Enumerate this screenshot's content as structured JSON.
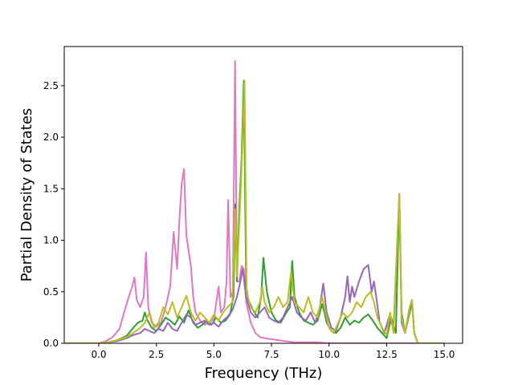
{
  "chart_data": {
    "type": "line",
    "title": "",
    "xlabel": "Frequency (THz)",
    "ylabel": "Partial Density of States",
    "xlim": [
      -1.5,
      15.8
    ],
    "ylim": [
      0,
      2.88
    ],
    "xticks": [
      0.0,
      2.5,
      5.0,
      7.5,
      10.0,
      12.5,
      15.0
    ],
    "xtick_labels": [
      "0.0",
      "2.5",
      "5.0",
      "7.5",
      "10.0",
      "12.5",
      "15.0"
    ],
    "yticks": [
      0.0,
      0.5,
      1.0,
      1.5,
      2.0,
      2.5
    ],
    "ytick_labels": [
      "0.0",
      "0.5",
      "1.0",
      "1.5",
      "2.0",
      "2.5"
    ],
    "grid": false,
    "legend": "none",
    "series": [
      {
        "color": "#e377c2",
        "points": [
          [
            -1.5,
            0
          ],
          [
            0,
            0
          ],
          [
            0.3,
            0.02
          ],
          [
            0.6,
            0.06
          ],
          [
            0.9,
            0.14
          ],
          [
            1.1,
            0.3
          ],
          [
            1.3,
            0.45
          ],
          [
            1.45,
            0.55
          ],
          [
            1.55,
            0.64
          ],
          [
            1.65,
            0.42
          ],
          [
            1.8,
            0.35
          ],
          [
            1.95,
            0.45
          ],
          [
            2.05,
            0.88
          ],
          [
            2.15,
            0.35
          ],
          [
            2.3,
            0.2
          ],
          [
            2.5,
            0.16
          ],
          [
            2.7,
            0.2
          ],
          [
            2.9,
            0.35
          ],
          [
            3.1,
            0.55
          ],
          [
            3.25,
            1.08
          ],
          [
            3.4,
            0.72
          ],
          [
            3.5,
            1.2
          ],
          [
            3.6,
            1.55
          ],
          [
            3.7,
            1.69
          ],
          [
            3.8,
            1.05
          ],
          [
            3.9,
            0.9
          ],
          [
            4.0,
            0.75
          ],
          [
            4.1,
            0.45
          ],
          [
            4.2,
            0.3
          ],
          [
            4.4,
            0.22
          ],
          [
            4.6,
            0.18
          ],
          [
            4.8,
            0.2
          ],
          [
            5.0,
            0.24
          ],
          [
            5.2,
            0.55
          ],
          [
            5.3,
            0.3
          ],
          [
            5.45,
            0.35
          ],
          [
            5.55,
            0.6
          ],
          [
            5.62,
            1.39
          ],
          [
            5.72,
            0.45
          ],
          [
            5.82,
            0.5
          ],
          [
            5.92,
            2.74
          ],
          [
            6.0,
            0.6
          ],
          [
            6.1,
            0.6
          ],
          [
            6.2,
            0.75
          ],
          [
            6.3,
            0.72
          ],
          [
            6.4,
            0.4
          ],
          [
            6.6,
            0.2
          ],
          [
            6.8,
            0.1
          ],
          [
            7.0,
            0.06
          ],
          [
            7.2,
            0.05
          ],
          [
            7.5,
            0.04
          ],
          [
            7.8,
            0.03
          ],
          [
            8.1,
            0.02
          ],
          [
            8.5,
            0.01
          ],
          [
            9.5,
            0.01
          ],
          [
            10.0,
            0
          ],
          [
            15.0,
            0
          ]
        ]
      },
      {
        "color": "#2ca02c",
        "points": [
          [
            -1.5,
            0
          ],
          [
            0,
            0
          ],
          [
            0.4,
            0.01
          ],
          [
            0.8,
            0.03
          ],
          [
            1.2,
            0.07
          ],
          [
            1.5,
            0.15
          ],
          [
            1.7,
            0.2
          ],
          [
            1.9,
            0.22
          ],
          [
            2.0,
            0.3
          ],
          [
            2.1,
            0.23
          ],
          [
            2.3,
            0.15
          ],
          [
            2.5,
            0.12
          ],
          [
            2.7,
            0.18
          ],
          [
            2.9,
            0.25
          ],
          [
            3.1,
            0.22
          ],
          [
            3.3,
            0.18
          ],
          [
            3.5,
            0.26
          ],
          [
            3.7,
            0.2
          ],
          [
            3.9,
            0.32
          ],
          [
            4.1,
            0.2
          ],
          [
            4.3,
            0.15
          ],
          [
            4.5,
            0.18
          ],
          [
            4.7,
            0.22
          ],
          [
            4.9,
            0.18
          ],
          [
            5.1,
            0.25
          ],
          [
            5.3,
            0.2
          ],
          [
            5.5,
            0.22
          ],
          [
            5.7,
            0.28
          ],
          [
            5.85,
            0.45
          ],
          [
            5.93,
            1.35
          ],
          [
            6.0,
            0.6
          ],
          [
            6.1,
            1.3
          ],
          [
            6.2,
            1.8
          ],
          [
            6.3,
            2.55
          ],
          [
            6.4,
            0.55
          ],
          [
            6.5,
            0.42
          ],
          [
            6.7,
            0.32
          ],
          [
            6.9,
            0.25
          ],
          [
            7.05,
            0.45
          ],
          [
            7.15,
            0.83
          ],
          [
            7.3,
            0.5
          ],
          [
            7.5,
            0.3
          ],
          [
            7.7,
            0.22
          ],
          [
            7.9,
            0.2
          ],
          [
            8.1,
            0.28
          ],
          [
            8.3,
            0.35
          ],
          [
            8.4,
            0.8
          ],
          [
            8.5,
            0.45
          ],
          [
            8.7,
            0.3
          ],
          [
            8.9,
            0.22
          ],
          [
            9.1,
            0.2
          ],
          [
            9.3,
            0.18
          ],
          [
            9.5,
            0.22
          ],
          [
            9.7,
            0.38
          ],
          [
            9.8,
            0.3
          ],
          [
            9.9,
            0.2
          ],
          [
            10.1,
            0.12
          ],
          [
            10.3,
            0.1
          ],
          [
            10.5,
            0.15
          ],
          [
            10.7,
            0.25
          ],
          [
            10.9,
            0.18
          ],
          [
            11.1,
            0.22
          ],
          [
            11.3,
            0.2
          ],
          [
            11.5,
            0.25
          ],
          [
            11.7,
            0.28
          ],
          [
            11.9,
            0.22
          ],
          [
            12.1,
            0.15
          ],
          [
            12.3,
            0.1
          ],
          [
            12.5,
            0.05
          ],
          [
            12.7,
            0.25
          ],
          [
            12.9,
            0.1
          ],
          [
            13.05,
            1.45
          ],
          [
            13.15,
            0.3
          ],
          [
            13.3,
            0.1
          ],
          [
            13.5,
            0.3
          ],
          [
            13.6,
            0.4
          ],
          [
            13.7,
            0.1
          ],
          [
            13.85,
            0
          ],
          [
            15.0,
            0
          ]
        ]
      },
      {
        "color": "#9467bd",
        "points": [
          [
            -1.5,
            0
          ],
          [
            0,
            0
          ],
          [
            0.4,
            0.01
          ],
          [
            0.8,
            0.02
          ],
          [
            1.2,
            0.05
          ],
          [
            1.5,
            0.08
          ],
          [
            1.8,
            0.1
          ],
          [
            2.0,
            0.14
          ],
          [
            2.2,
            0.12
          ],
          [
            2.4,
            0.1
          ],
          [
            2.6,
            0.14
          ],
          [
            2.8,
            0.12
          ],
          [
            3.0,
            0.2
          ],
          [
            3.2,
            0.14
          ],
          [
            3.4,
            0.12
          ],
          [
            3.6,
            0.2
          ],
          [
            3.8,
            0.28
          ],
          [
            4.0,
            0.25
          ],
          [
            4.2,
            0.18
          ],
          [
            4.4,
            0.2
          ],
          [
            4.6,
            0.22
          ],
          [
            4.8,
            0.18
          ],
          [
            5.0,
            0.2
          ],
          [
            5.2,
            0.16
          ],
          [
            5.4,
            0.22
          ],
          [
            5.6,
            0.26
          ],
          [
            5.8,
            0.32
          ],
          [
            6.0,
            0.45
          ],
          [
            6.15,
            0.6
          ],
          [
            6.25,
            0.72
          ],
          [
            6.4,
            0.45
          ],
          [
            6.6,
            0.3
          ],
          [
            6.8,
            0.25
          ],
          [
            7.0,
            0.3
          ],
          [
            7.2,
            0.35
          ],
          [
            7.4,
            0.25
          ],
          [
            7.6,
            0.22
          ],
          [
            7.8,
            0.2
          ],
          [
            8.0,
            0.25
          ],
          [
            8.2,
            0.35
          ],
          [
            8.4,
            0.45
          ],
          [
            8.6,
            0.3
          ],
          [
            8.8,
            0.25
          ],
          [
            9.0,
            0.22
          ],
          [
            9.2,
            0.3
          ],
          [
            9.4,
            0.2
          ],
          [
            9.6,
            0.35
          ],
          [
            9.75,
            0.58
          ],
          [
            9.9,
            0.3
          ],
          [
            10.1,
            0.15
          ],
          [
            10.3,
            0.12
          ],
          [
            10.5,
            0.25
          ],
          [
            10.7,
            0.45
          ],
          [
            10.8,
            0.65
          ],
          [
            10.9,
            0.4
          ],
          [
            11.0,
            0.55
          ],
          [
            11.1,
            0.45
          ],
          [
            11.3,
            0.6
          ],
          [
            11.5,
            0.72
          ],
          [
            11.7,
            0.76
          ],
          [
            11.85,
            0.5
          ],
          [
            11.95,
            0.6
          ],
          [
            12.05,
            0.45
          ],
          [
            12.2,
            0.2
          ],
          [
            12.4,
            0.1
          ],
          [
            12.6,
            0.25
          ],
          [
            12.8,
            0.15
          ],
          [
            13.05,
            1.45
          ],
          [
            13.15,
            0.2
          ],
          [
            13.3,
            0.1
          ],
          [
            13.5,
            0.35
          ],
          [
            13.6,
            0.42
          ],
          [
            13.7,
            0.1
          ],
          [
            13.85,
            0
          ],
          [
            15.0,
            0
          ]
        ]
      },
      {
        "color": "#bcbd22",
        "points": [
          [
            -1.5,
            0
          ],
          [
            0,
            0
          ],
          [
            0.4,
            0.01
          ],
          [
            0.8,
            0.03
          ],
          [
            1.2,
            0.06
          ],
          [
            1.5,
            0.1
          ],
          [
            1.8,
            0.15
          ],
          [
            2.0,
            0.2
          ],
          [
            2.2,
            0.3
          ],
          [
            2.4,
            0.15
          ],
          [
            2.6,
            0.2
          ],
          [
            2.8,
            0.35
          ],
          [
            3.0,
            0.28
          ],
          [
            3.2,
            0.4
          ],
          [
            3.4,
            0.25
          ],
          [
            3.6,
            0.35
          ],
          [
            3.8,
            0.46
          ],
          [
            4.0,
            0.3
          ],
          [
            4.2,
            0.22
          ],
          [
            4.4,
            0.3
          ],
          [
            4.6,
            0.25
          ],
          [
            4.8,
            0.2
          ],
          [
            5.0,
            0.28
          ],
          [
            5.2,
            0.22
          ],
          [
            5.4,
            0.3
          ],
          [
            5.6,
            0.35
          ],
          [
            5.8,
            0.4
          ],
          [
            5.93,
            1.3
          ],
          [
            6.0,
            0.65
          ],
          [
            6.15,
            1.4
          ],
          [
            6.25,
            2.0
          ],
          [
            6.33,
            2.55
          ],
          [
            6.42,
            0.5
          ],
          [
            6.6,
            0.35
          ],
          [
            6.8,
            0.3
          ],
          [
            7.0,
            0.4
          ],
          [
            7.1,
            0.55
          ],
          [
            7.2,
            0.4
          ],
          [
            7.4,
            0.3
          ],
          [
            7.6,
            0.35
          ],
          [
            7.8,
            0.45
          ],
          [
            8.0,
            0.35
          ],
          [
            8.2,
            0.4
          ],
          [
            8.35,
            0.7
          ],
          [
            8.5,
            0.4
          ],
          [
            8.7,
            0.35
          ],
          [
            8.9,
            0.3
          ],
          [
            9.1,
            0.45
          ],
          [
            9.3,
            0.3
          ],
          [
            9.5,
            0.25
          ],
          [
            9.7,
            0.45
          ],
          [
            9.85,
            0.3
          ],
          [
            10.0,
            0.15
          ],
          [
            10.2,
            0.1
          ],
          [
            10.4,
            0.2
          ],
          [
            10.6,
            0.3
          ],
          [
            10.8,
            0.25
          ],
          [
            11.0,
            0.3
          ],
          [
            11.2,
            0.4
          ],
          [
            11.4,
            0.35
          ],
          [
            11.6,
            0.45
          ],
          [
            11.8,
            0.5
          ],
          [
            11.95,
            0.4
          ],
          [
            12.1,
            0.25
          ],
          [
            12.3,
            0.15
          ],
          [
            12.5,
            0.08
          ],
          [
            12.65,
            0.3
          ],
          [
            12.8,
            0.1
          ],
          [
            13.05,
            1.45
          ],
          [
            13.15,
            0.25
          ],
          [
            13.3,
            0.1
          ],
          [
            13.5,
            0.35
          ],
          [
            13.6,
            0.42
          ],
          [
            13.7,
            0.1
          ],
          [
            13.85,
            0
          ],
          [
            15.0,
            0
          ]
        ]
      }
    ]
  }
}
